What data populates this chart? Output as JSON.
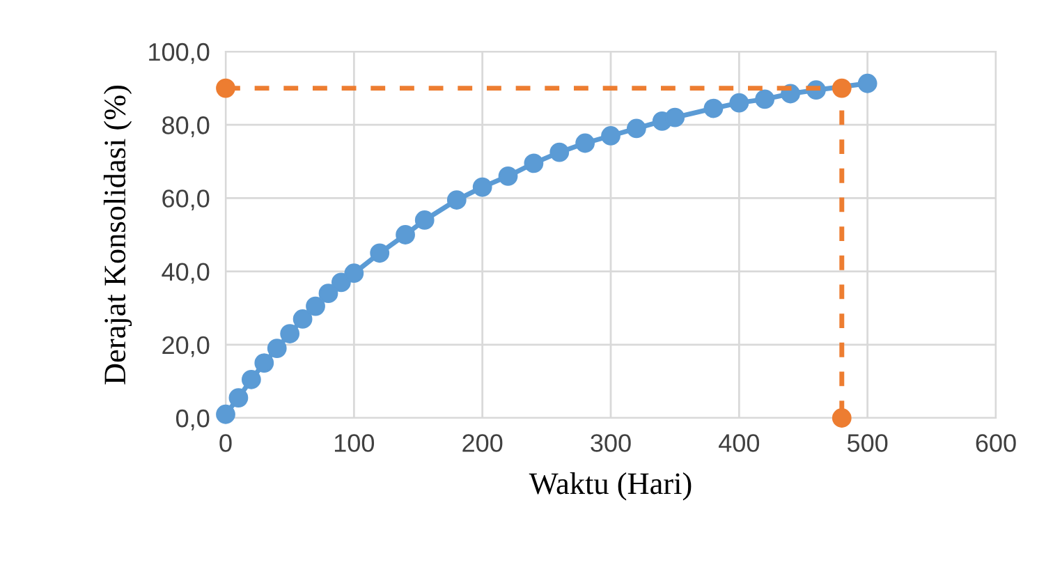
{
  "chart_data": {
    "type": "line",
    "xlabel": "Waktu (Hari)",
    "ylabel": "Derajat Konsolidasi (%)",
    "xlim": [
      0,
      600
    ],
    "xticks": [
      0,
      100,
      200,
      300,
      400,
      500,
      600
    ],
    "ylim": [
      0,
      100
    ],
    "yticks": [
      {
        "value": 0,
        "label": "0,0"
      },
      {
        "value": 20,
        "label": "20,0"
      },
      {
        "value": 40,
        "label": "40,0"
      },
      {
        "value": 60,
        "label": "60,0"
      },
      {
        "value": 80,
        "label": "80,0"
      },
      {
        "value": 100,
        "label": "100,0"
      }
    ],
    "grid": true,
    "legend": false,
    "marker": "circle",
    "series": [
      {
        "color": "#5b9bd5",
        "line_style": "solid",
        "x": [
          0,
          10,
          20,
          30,
          40,
          50,
          60,
          70,
          80,
          90,
          100,
          120,
          140,
          155,
          180,
          200,
          220,
          240,
          260,
          280,
          300,
          320,
          340,
          350,
          380,
          400,
          420,
          440,
          460,
          500
        ],
        "values": [
          1,
          5.5,
          10.5,
          15,
          19,
          23,
          27,
          30.5,
          34,
          37,
          39.5,
          45,
          50,
          54,
          59.5,
          63,
          66,
          69.5,
          72.5,
          75,
          77,
          79,
          81,
          82,
          84.5,
          86,
          87,
          88.5,
          89.5,
          91.3
        ]
      },
      {
        "color": "#ed7d31",
        "line_style": "dashed",
        "x": [
          0,
          480,
          480
        ],
        "values": [
          90,
          90,
          0
        ]
      }
    ]
  }
}
